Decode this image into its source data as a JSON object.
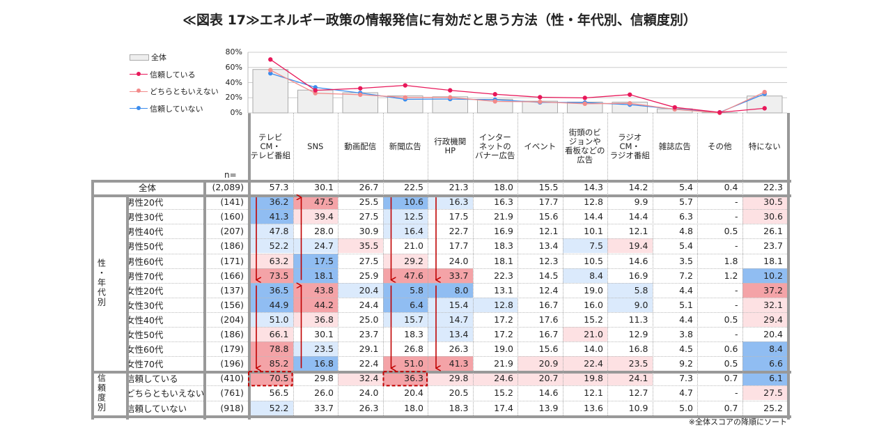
{
  "title": "≪図表 17≫エネルギー政策の情報発信に有効だと思う方法（性・年代別、信頼度別）",
  "note": "※全体スコアの降順にソート",
  "n_label": "n=",
  "colors": {
    "overall_bar": "#eeeeee",
    "trust": "#e8185a",
    "neutral": "#f28a8a",
    "distrust": "#3b8ced",
    "strong_blue": "#90bdf2",
    "light_blue": "#dbeafc",
    "strong_red": "#f4a3a7",
    "light_red": "#fde1e3",
    "arrow": "#c00000"
  },
  "group_labels": {
    "age": "性・年代別",
    "trust": "信頼度別"
  },
  "chart_data": {
    "type": "bar+line",
    "yticks": [
      "80%",
      "60%",
      "40%",
      "20%",
      "0%"
    ],
    "ylim": [
      0,
      80
    ],
    "categories": [
      "テレビCM・テレビ番組",
      "SNS",
      "動画配信",
      "新聞広告",
      "行政機関HP",
      "インターネットのバナー広告",
      "イベント",
      "街頭のビジョンや看板などの広告",
      "ラジオCM・ラジオ番組",
      "雑誌広告",
      "その他",
      "特にない"
    ],
    "series": [
      {
        "name": "全体",
        "type": "bar",
        "values": [
          57.3,
          30.1,
          26.7,
          22.5,
          21.3,
          18.0,
          15.5,
          14.3,
          14.2,
          5.4,
          0.4,
          22.3
        ]
      },
      {
        "name": "信頼している",
        "type": "line",
        "values": [
          70.5,
          29.8,
          32.4,
          36.3,
          29.8,
          24.6,
          20.7,
          19.8,
          24.1,
          7.3,
          0.7,
          6.1
        ]
      },
      {
        "name": "どちらともいえない",
        "type": "line",
        "values": [
          56.5,
          26.0,
          24.0,
          20.4,
          20.5,
          15.2,
          14.6,
          12.1,
          12.7,
          4.7,
          0,
          27.5
        ]
      },
      {
        "name": "信頼していない",
        "type": "line",
        "values": [
          52.2,
          33.7,
          26.3,
          18.0,
          18.3,
          17.4,
          13.9,
          13.6,
          10.9,
          5.0,
          0.7,
          25.2
        ]
      }
    ]
  },
  "headers": [
    "テレビ\nCM・\nテレビ番組",
    "SNS",
    "動画配信",
    "新聞広告",
    "行政機関\nHP",
    "インター\nネットの\nバナー広告",
    "イベント",
    "街頭のビ\nジョンや\n看板などの\n広告",
    "ラジオ\nCM・\nラジオ番組",
    "雑誌広告",
    "その他",
    "特にない"
  ],
  "rows": [
    {
      "label": "全体",
      "n": "(2,089)",
      "v": [
        "57.3",
        "30.1",
        "26.7",
        "22.5",
        "21.3",
        "18.0",
        "15.5",
        "14.3",
        "14.2",
        "5.4",
        "0.4",
        "22.3"
      ],
      "hl": [
        "",
        "",
        "",
        "",
        "",
        "",
        "",
        "",
        "",
        "",
        "",
        ""
      ]
    },
    {
      "label": "男性20代",
      "n": "(141)",
      "v": [
        "36.2",
        "47.5",
        "25.5",
        "10.6",
        "16.3",
        "16.3",
        "17.7",
        "12.8",
        "9.9",
        "5.7",
        "-",
        "30.5"
      ],
      "hl": [
        "B",
        "R",
        "",
        "B",
        "b",
        "",
        "",
        "",
        "",
        "",
        "",
        "r"
      ]
    },
    {
      "label": "男性30代",
      "n": "(160)",
      "v": [
        "41.3",
        "39.4",
        "27.5",
        "12.5",
        "17.5",
        "21.9",
        "15.6",
        "14.4",
        "14.4",
        "6.3",
        "-",
        "30.6"
      ],
      "hl": [
        "B",
        "r",
        "",
        "b",
        "",
        "",
        "",
        "",
        "",
        "",
        "",
        "r"
      ]
    },
    {
      "label": "男性40代",
      "n": "(207)",
      "v": [
        "47.8",
        "28.0",
        "30.9",
        "16.4",
        "22.7",
        "16.9",
        "12.1",
        "10.1",
        "12.1",
        "4.8",
        "0.5",
        "26.1"
      ],
      "hl": [
        "b",
        "",
        "",
        "b",
        "",
        "",
        "",
        "",
        "",
        "",
        "",
        ""
      ]
    },
    {
      "label": "男性50代",
      "n": "(186)",
      "v": [
        "52.2",
        "24.7",
        "35.5",
        "21.0",
        "17.7",
        "18.3",
        "13.4",
        "7.5",
        "19.4",
        "5.4",
        "-",
        "23.7"
      ],
      "hl": [
        "b",
        "b",
        "r",
        "",
        "",
        "",
        "",
        "b",
        "r",
        "",
        "",
        ""
      ]
    },
    {
      "label": "男性60代",
      "n": "(171)",
      "v": [
        "63.2",
        "17.5",
        "27.5",
        "29.2",
        "24.0",
        "18.1",
        "12.3",
        "10.5",
        "14.6",
        "3.5",
        "1.8",
        "18.1"
      ],
      "hl": [
        "r",
        "B",
        "",
        "r",
        "",
        "",
        "",
        "",
        "",
        "",
        "",
        ""
      ]
    },
    {
      "label": "男性70代",
      "n": "(166)",
      "v": [
        "73.5",
        "18.1",
        "25.9",
        "47.6",
        "33.7",
        "22.3",
        "14.5",
        "8.4",
        "16.9",
        "7.2",
        "1.2",
        "10.2"
      ],
      "hl": [
        "R",
        "B",
        "",
        "R",
        "R",
        "",
        "",
        "b",
        "",
        "",
        "",
        "B"
      ]
    },
    {
      "label": "女性20代",
      "n": "(137)",
      "v": [
        "36.5",
        "43.8",
        "20.4",
        "5.8",
        "8.0",
        "13.1",
        "12.4",
        "19.0",
        "5.8",
        "4.4",
        "-",
        "37.2"
      ],
      "hl": [
        "B",
        "R",
        "b",
        "B",
        "B",
        "",
        "",
        "",
        "b",
        "",
        "",
        "R"
      ]
    },
    {
      "label": "女性30代",
      "n": "(156)",
      "v": [
        "44.9",
        "44.2",
        "24.4",
        "6.4",
        "15.4",
        "12.8",
        "16.7",
        "16.0",
        "9.0",
        "5.1",
        "-",
        "32.1"
      ],
      "hl": [
        "B",
        "R",
        "",
        "B",
        "b",
        "b",
        "",
        "",
        "b",
        "",
        "",
        "r"
      ]
    },
    {
      "label": "女性40代",
      "n": "(204)",
      "v": [
        "51.0",
        "36.8",
        "25.0",
        "15.7",
        "14.7",
        "17.2",
        "17.6",
        "15.2",
        "11.3",
        "4.4",
        "0.5",
        "29.4"
      ],
      "hl": [
        "b",
        "r",
        "",
        "b",
        "b",
        "",
        "",
        "",
        "",
        "",
        "",
        "r"
      ]
    },
    {
      "label": "女性50代",
      "n": "(186)",
      "v": [
        "66.1",
        "30.1",
        "23.7",
        "18.3",
        "13.4",
        "17.2",
        "16.7",
        "21.0",
        "12.9",
        "3.8",
        "-",
        "20.4"
      ],
      "hl": [
        "r",
        "",
        "",
        "",
        "b",
        "",
        "",
        "r",
        "",
        "",
        "",
        ""
      ]
    },
    {
      "label": "女性60代",
      "n": "(179)",
      "v": [
        "78.8",
        "23.5",
        "29.1",
        "26.8",
        "26.3",
        "19.0",
        "15.6",
        "14.0",
        "16.8",
        "4.5",
        "0.6",
        "8.4"
      ],
      "hl": [
        "R",
        "b",
        "",
        "",
        "",
        "",
        "",
        "",
        "",
        "",
        "",
        "B"
      ]
    },
    {
      "label": "女性70代",
      "n": "(196)",
      "v": [
        "85.2",
        "16.8",
        "22.4",
        "51.0",
        "41.3",
        "21.9",
        "20.9",
        "22.4",
        "23.5",
        "9.2",
        "0.5",
        "6.6"
      ],
      "hl": [
        "R",
        "B",
        "",
        "R",
        "R",
        "",
        "r",
        "r",
        "r",
        "",
        "",
        "B"
      ]
    },
    {
      "label": "信頼している",
      "n": "(410)",
      "v": [
        "70.5",
        "29.8",
        "32.4",
        "36.3",
        "29.8",
        "24.6",
        "20.7",
        "19.8",
        "24.1",
        "7.3",
        "0.7",
        "6.1"
      ],
      "hl": [
        "R",
        "",
        "r",
        "R",
        "r",
        "r",
        "r",
        "r",
        "r",
        "",
        "",
        "B"
      ]
    },
    {
      "label": "どちらともいえない",
      "n": "(761)",
      "v": [
        "56.5",
        "26.0",
        "24.0",
        "20.4",
        "20.5",
        "15.2",
        "14.6",
        "12.1",
        "12.7",
        "4.7",
        "-",
        "27.5"
      ],
      "hl": [
        "",
        "",
        "",
        "",
        "",
        "",
        "",
        "",
        "",
        "",
        "",
        "r"
      ]
    },
    {
      "label": "信頼していない",
      "n": "(918)",
      "v": [
        "52.2",
        "33.7",
        "26.3",
        "18.0",
        "18.3",
        "17.4",
        "13.9",
        "13.6",
        "10.9",
        "5.0",
        "0.7",
        "25.2"
      ],
      "hl": [
        "b",
        "",
        "",
        "",
        "",
        "",
        "",
        "",
        "",
        "",
        "",
        ""
      ]
    }
  ]
}
